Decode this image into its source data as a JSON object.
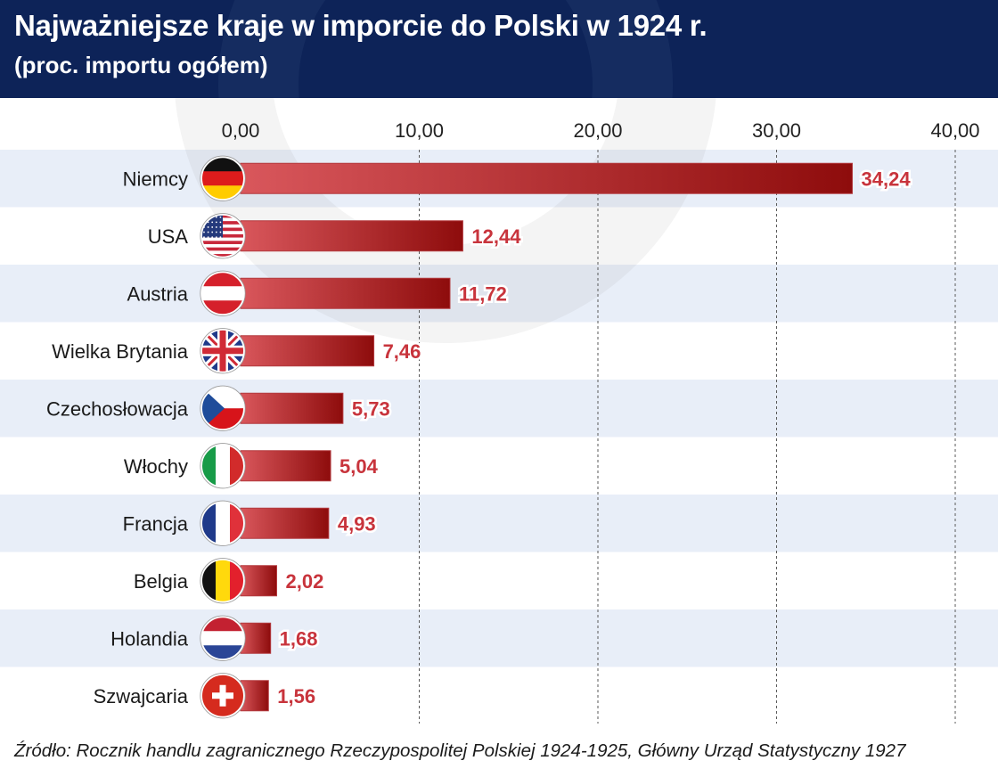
{
  "header": {
    "title": "Najważniejsze kraje w imporcie do Polski w 1924 r.",
    "subtitle": "(proc. importu ogółem)"
  },
  "source": "Źródło: Rocznik handlu zagranicznego Rzeczypospolitej Polskiej 1924-1925, Główny Urząd Statystyczny 1927",
  "colors": {
    "header_bg": "#0d2358",
    "bar_start": "#d9575c",
    "bar_end": "#8e0c0c",
    "value_label": "#c8343c",
    "row_stripe": "#e8eef8"
  },
  "chart_data": {
    "type": "bar",
    "orientation": "horizontal",
    "title": "Najważniejsze kraje w imporcie do Polski w 1924 r.",
    "subtitle": "(proc. importu ogółem)",
    "categories": [
      "Niemcy",
      "USA",
      "Austria",
      "Wielka Brytania",
      "Czechosłowacja",
      "Włochy",
      "Francja",
      "Belgia",
      "Holandia",
      "Szwajcaria"
    ],
    "values": [
      34.24,
      12.44,
      11.72,
      7.46,
      5.73,
      5.04,
      4.93,
      2.02,
      1.68,
      1.56
    ],
    "value_labels": [
      "34,24",
      "12,44",
      "11,72",
      "7,46",
      "5,73",
      "5,04",
      "4,93",
      "2,02",
      "1,68",
      "1,56"
    ],
    "flag_icons": [
      "germany-flag-icon",
      "usa-flag-icon",
      "austria-flag-icon",
      "uk-flag-icon",
      "czechoslovakia-flag-icon",
      "italy-flag-icon",
      "france-flag-icon",
      "belgium-flag-icon",
      "netherlands-flag-icon",
      "switzerland-flag-icon"
    ],
    "xlim": [
      0,
      40
    ],
    "xticks": [
      0,
      10,
      20,
      30,
      40
    ],
    "xtick_labels": [
      "0,00",
      "10,00",
      "20,00",
      "30,00",
      "40,00"
    ],
    "axis_position": "top",
    "grid": "vertical dashed",
    "legend": "none"
  }
}
